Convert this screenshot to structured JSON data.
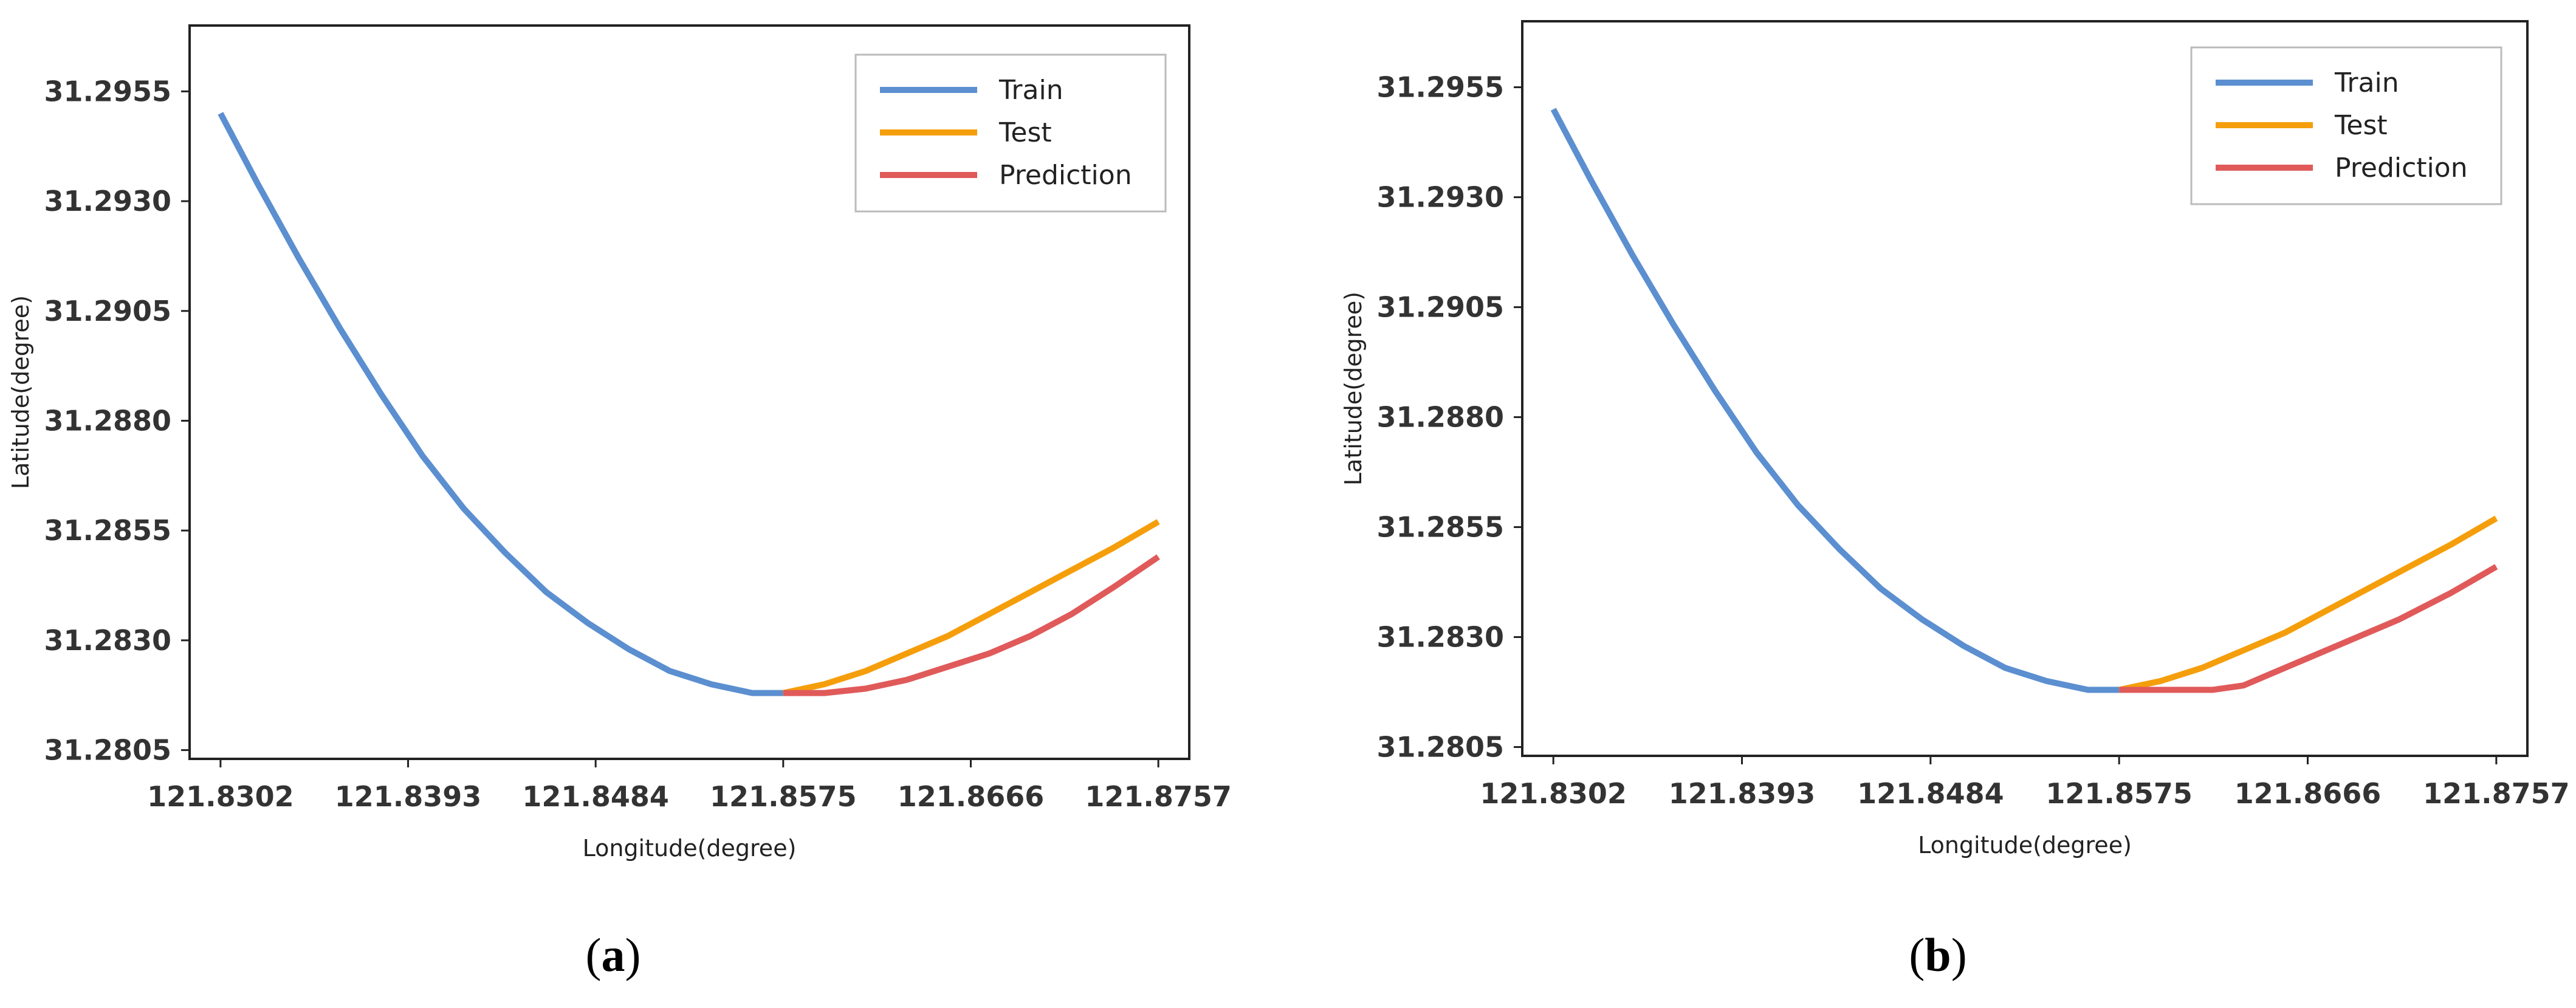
{
  "chart_data": [
    {
      "type": "line",
      "panel_label": "a",
      "title": "",
      "xlabel": "Longitude(degree)",
      "ylabel": "Latitude(degree)",
      "x_ticks": [
        "121.8302",
        "121.8393",
        "121.8484",
        "121.8575",
        "121.8666",
        "121.8757"
      ],
      "y_ticks": [
        "31.2955",
        "31.2930",
        "31.2905",
        "31.2880",
        "31.2855",
        "31.2830",
        "31.2805"
      ],
      "xlim": [
        121.8287,
        121.8772
      ],
      "ylim": [
        31.2803,
        31.297
      ],
      "grid": false,
      "legend_position": "top-right",
      "series": [
        {
          "name": "Train",
          "color": "#5b8fd0",
          "x": [
            121.8302,
            121.832,
            121.834,
            121.836,
            121.838,
            121.84,
            121.842,
            121.844,
            121.846,
            121.848,
            121.85,
            121.852,
            121.854,
            121.856,
            121.8575
          ],
          "y": [
            31.295,
            31.2934,
            31.2917,
            31.2901,
            31.2886,
            31.2872,
            31.286,
            31.285,
            31.2841,
            31.2834,
            31.2828,
            31.2823,
            31.282,
            31.2818,
            31.2818
          ]
        },
        {
          "name": "Test",
          "color": "#f59e0b",
          "x": [
            121.8575,
            121.8595,
            121.8615,
            121.8635,
            121.8655,
            121.8675,
            121.8695,
            121.8715,
            121.8735,
            121.8757
          ],
          "y": [
            31.2818,
            31.282,
            31.2823,
            31.2827,
            31.2831,
            31.2836,
            31.2841,
            31.2846,
            31.2851,
            31.2857
          ]
        },
        {
          "name": "Prediction",
          "color": "#e05a5a",
          "x": [
            121.8575,
            121.8595,
            121.8615,
            121.8635,
            121.8655,
            121.8675,
            121.8695,
            121.8715,
            121.8735,
            121.8757
          ],
          "y": [
            31.2818,
            31.2818,
            31.2819,
            31.2821,
            31.2824,
            31.2827,
            31.2831,
            31.2836,
            31.2842,
            31.2849
          ]
        }
      ]
    },
    {
      "type": "line",
      "panel_label": "b",
      "title": "",
      "xlabel": "Longitude(degree)",
      "ylabel": "Latitude(degree)",
      "x_ticks": [
        "121.8302",
        "121.8393",
        "121.8484",
        "121.8575",
        "121.8666",
        "121.8757"
      ],
      "y_ticks": [
        "31.2955",
        "31.2930",
        "31.2905",
        "31.2880",
        "31.2855",
        "31.2830",
        "31.2805"
      ],
      "xlim": [
        121.8287,
        121.8772
      ],
      "ylim": [
        31.2803,
        31.297
      ],
      "grid": false,
      "legend_position": "top-right",
      "series": [
        {
          "name": "Train",
          "color": "#5b8fd0",
          "x": [
            121.8302,
            121.832,
            121.834,
            121.836,
            121.838,
            121.84,
            121.842,
            121.844,
            121.846,
            121.848,
            121.85,
            121.852,
            121.854,
            121.856,
            121.8575
          ],
          "y": [
            31.295,
            31.2934,
            31.2917,
            31.2901,
            31.2886,
            31.2872,
            31.286,
            31.285,
            31.2841,
            31.2834,
            31.2828,
            31.2823,
            31.282,
            31.2818,
            31.2818
          ]
        },
        {
          "name": "Test",
          "color": "#f59e0b",
          "x": [
            121.8575,
            121.8595,
            121.8615,
            121.8635,
            121.8655,
            121.8675,
            121.8695,
            121.8715,
            121.8735,
            121.8757
          ],
          "y": [
            31.2818,
            31.282,
            31.2823,
            31.2827,
            31.2831,
            31.2836,
            31.2841,
            31.2846,
            31.2851,
            31.2857
          ]
        },
        {
          "name": "Prediction",
          "color": "#e05a5a",
          "x": [
            121.8575,
            121.86,
            121.862,
            121.8635,
            121.865,
            121.867,
            121.869,
            121.871,
            121.8735,
            121.8757
          ],
          "y": [
            31.2818,
            31.2818,
            31.2818,
            31.2819,
            31.2822,
            31.2826,
            31.283,
            31.2834,
            31.284,
            31.2846
          ]
        }
      ]
    }
  ]
}
